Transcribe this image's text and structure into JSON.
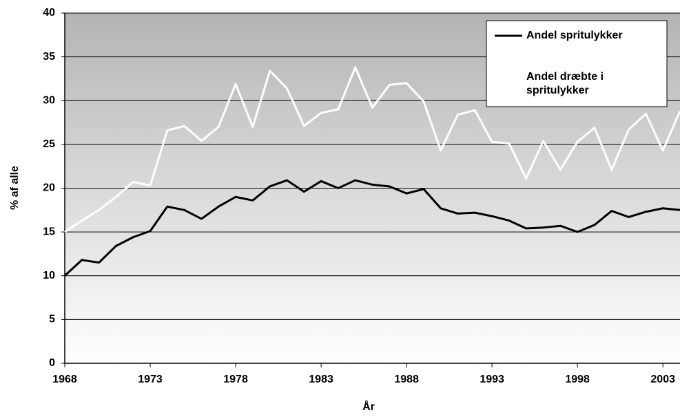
{
  "chart_data": {
    "type": "line",
    "x": [
      1968,
      1969,
      1970,
      1971,
      1972,
      1973,
      1974,
      1975,
      1976,
      1977,
      1978,
      1979,
      1980,
      1981,
      1982,
      1983,
      1984,
      1985,
      1986,
      1987,
      1988,
      1989,
      1990,
      1991,
      1992,
      1993,
      1994,
      1995,
      1996,
      1997,
      1998,
      1999,
      2000,
      2001,
      2002,
      2003,
      2004
    ],
    "series": [
      {
        "name": "Andel spritulykker",
        "color": "#000000",
        "values": [
          10,
          11.8,
          11.5,
          13.4,
          14.4,
          15.1,
          17.9,
          17.5,
          16.5,
          17.9,
          19.0,
          18.6,
          20.2,
          20.9,
          19.6,
          20.8,
          20.0,
          20.9,
          20.4,
          20.2,
          19.4,
          19.9,
          17.7,
          17.1,
          17.2,
          16.8,
          16.3,
          15.4,
          15.5,
          15.7,
          15.0,
          15.8,
          17.4,
          16.7,
          17.3,
          17.7,
          17.5
        ]
      },
      {
        "name": "Andel dræbte i spritulykker",
        "color": "#ffffff",
        "values": [
          15,
          16.3,
          17.5,
          19.0,
          20.7,
          20.3,
          26.6,
          27.1,
          25.4,
          27.0,
          31.9,
          27.0,
          33.4,
          31.4,
          27.1,
          28.6,
          29.0,
          33.8,
          29.2,
          31.8,
          32.0,
          29.9,
          24.3,
          28.4,
          28.9,
          25.3,
          25.1,
          21.1,
          25.4,
          22.1,
          25.3,
          26.9,
          22.1,
          26.7,
          28.5,
          24.3,
          28.8
        ]
      }
    ],
    "xlabel": "År",
    "ylabel": "% af alle",
    "xlim": [
      1968,
      2004
    ],
    "xticks": [
      1968,
      1973,
      1978,
      1983,
      1988,
      1993,
      1998,
      2003
    ],
    "ylim": [
      0,
      40
    ],
    "yticks": [
      0,
      5,
      10,
      15,
      20,
      25,
      30,
      35,
      40
    ],
    "grid": true,
    "legend": "upper right"
  }
}
